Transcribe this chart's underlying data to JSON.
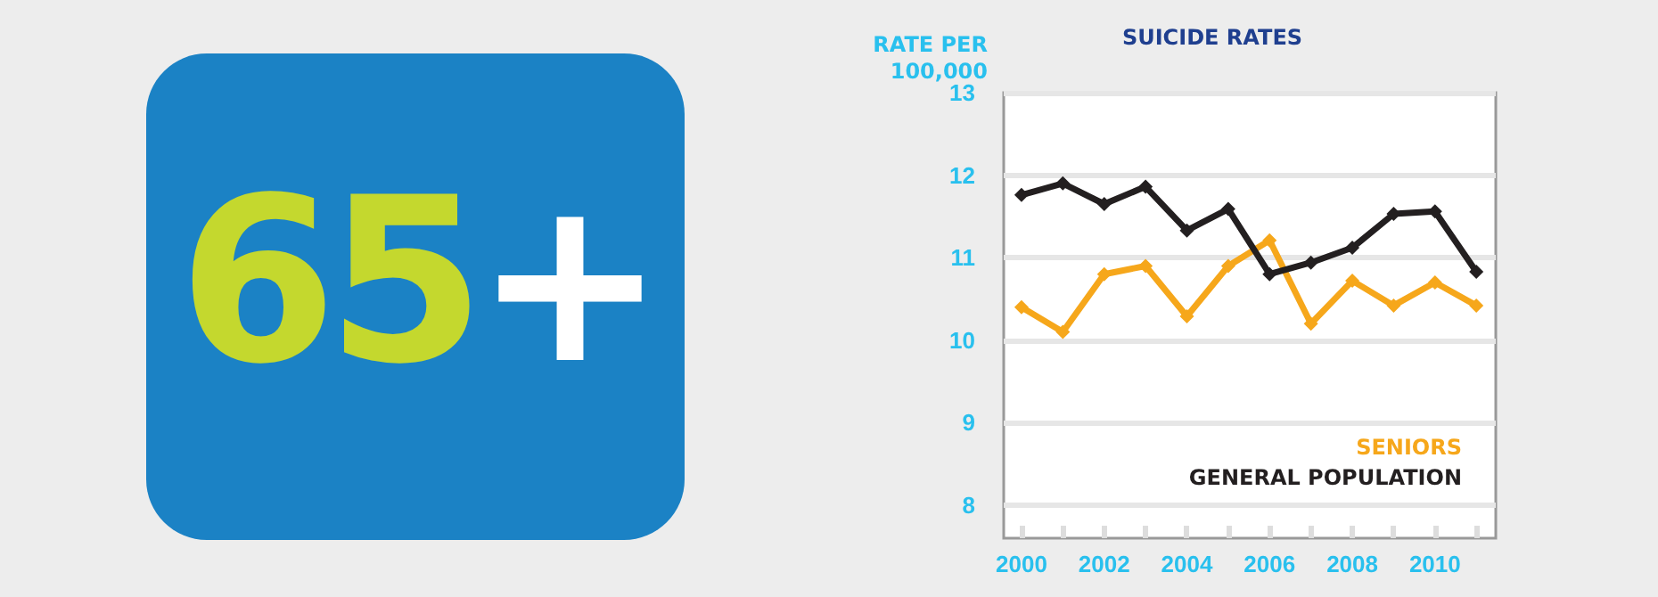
{
  "chart_data": {
    "type": "line",
    "title": "SUICIDE RATES",
    "ylabel": "RATE PER 100,000",
    "annotations": [
      "65+"
    ],
    "x": [
      2000,
      2001,
      2002,
      2003,
      2004,
      2005,
      2006,
      2007,
      2008,
      2009,
      2010,
      2011
    ],
    "series": [
      {
        "name": "SENIORS",
        "color": "#f6a71b",
        "values": [
          10.4,
          10.1,
          10.8,
          10.9,
          10.29,
          10.9,
          11.21,
          10.2,
          10.72,
          10.42,
          10.7,
          10.42
        ]
      },
      {
        "name": "GENERAL POPULATION",
        "color": "#231f20",
        "values": [
          11.76,
          11.9,
          11.65,
          11.86,
          11.33,
          11.59,
          10.8,
          10.94,
          11.12,
          11.53,
          11.56,
          10.83
        ]
      }
    ],
    "xlim": [
      1999.57,
      2011.47
    ],
    "xticks": [
      2000,
      {
        "value": 2001,
        "label": null
      },
      2002,
      {
        "value": 2003,
        "label": null
      },
      2004,
      {
        "value": 2005,
        "label": null
      },
      2006,
      {
        "value": 2007,
        "label": null
      },
      2008,
      {
        "value": 2009,
        "label": null
      },
      2010,
      {
        "value": 2011,
        "label": null
      }
    ],
    "ylim": [
      7.6,
      13
    ],
    "yticks": [
      8,
      9,
      10,
      11,
      12,
      13
    ],
    "grid": "y",
    "legend": "bottom right",
    "marker": "diamond",
    "line_style": "solid"
  }
}
